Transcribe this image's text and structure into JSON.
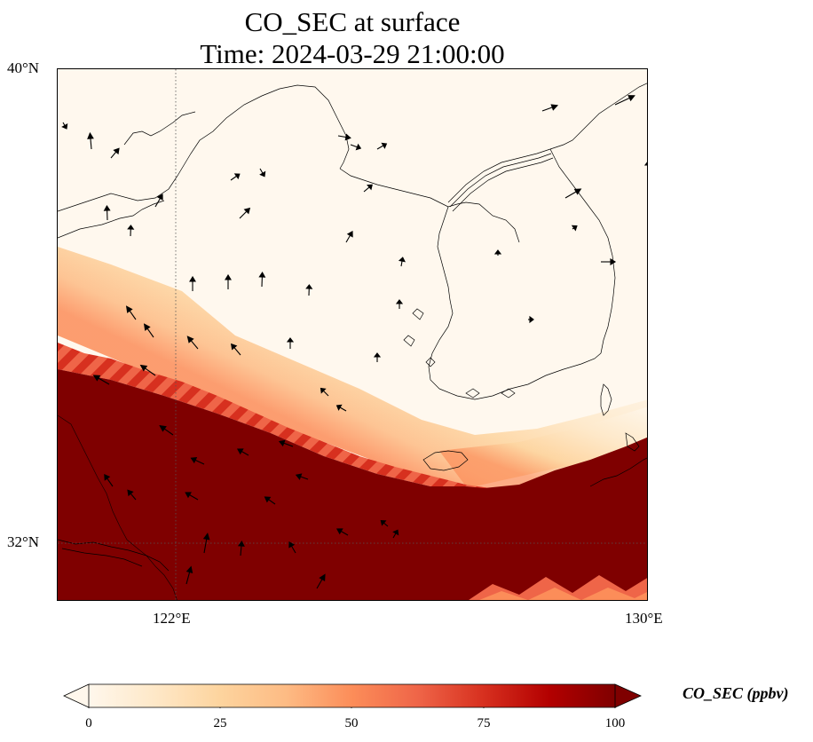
{
  "title": {
    "line1": "CO_SEC at surface",
    "line2": "Time: 2024-03-29 21:00:00"
  },
  "map": {
    "lat_range": [
      31.2,
      40.0
    ],
    "lon_range": [
      118.0,
      130.0
    ],
    "gridlines": {
      "lons": [
        122
      ],
      "lats": [
        32
      ],
      "style": "dotted"
    },
    "lat_ticks": [
      "40°N",
      "32°N"
    ],
    "lon_ticks": [
      "122°E",
      "130°E"
    ],
    "features": [
      "coastlines",
      "wind-vectors",
      "concentration-field"
    ]
  },
  "colorbar": {
    "label": "CO_SEC (ppbv)",
    "min": 0,
    "max": 100,
    "extend": "both",
    "ticks": [
      "0",
      "25",
      "50",
      "75",
      "100"
    ],
    "colormap": "OrRd",
    "colors": [
      "#fff7ec",
      "#fee8c8",
      "#fdd49e",
      "#fdbb84",
      "#fc8d59",
      "#ef6548",
      "#d7301f",
      "#b30000",
      "#7f0000"
    ]
  }
}
